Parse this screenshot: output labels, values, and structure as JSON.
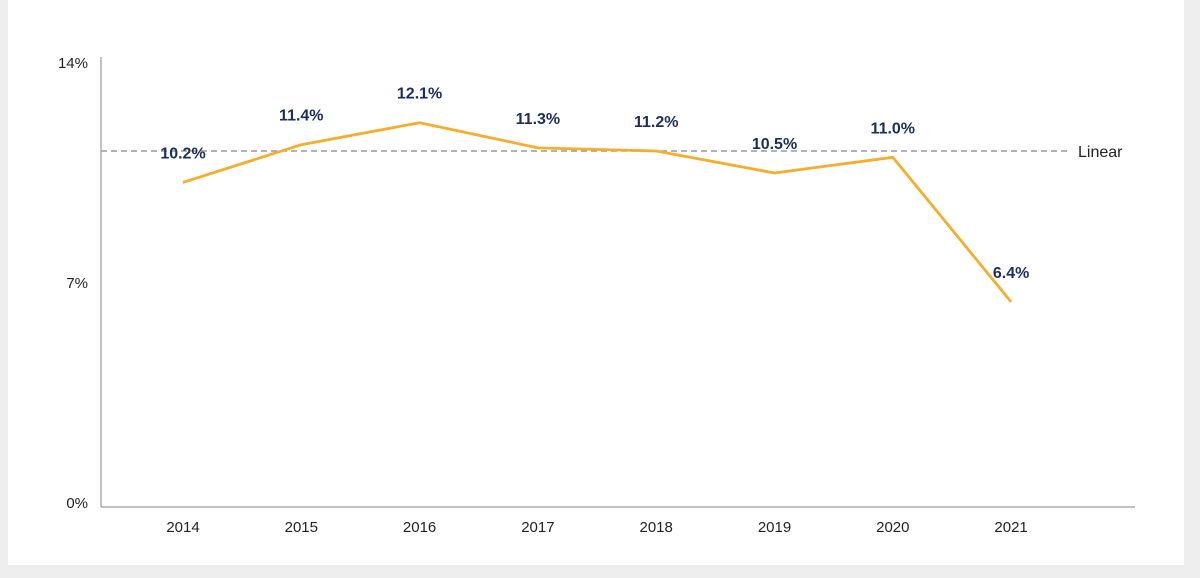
{
  "colors": {
    "series": "#f5ad2c",
    "label": "#1c2e5b",
    "axis": "#9a9a9a",
    "trend": "#9a9a9a"
  },
  "chart_data": {
    "type": "line",
    "title": "",
    "xlabel": "",
    "ylabel": "",
    "categories": [
      "2014",
      "2015",
      "2016",
      "2017",
      "2018",
      "2019",
      "2020",
      "2021"
    ],
    "values": [
      10.2,
      11.4,
      12.1,
      11.3,
      11.2,
      10.5,
      11.0,
      6.4
    ],
    "data_labels": [
      "10.2%",
      "11.4%",
      "12.1%",
      "11.3%",
      "11.2%",
      "10.5%",
      "11.0%",
      "6.4%"
    ],
    "ylim": [
      0,
      14
    ],
    "y_ticks": [
      0,
      7,
      14
    ],
    "y_tick_labels": [
      "0%",
      "7%",
      "14%"
    ],
    "trendline": {
      "label": "Linear",
      "value": 11.2
    },
    "grid": false,
    "legend": "none"
  }
}
